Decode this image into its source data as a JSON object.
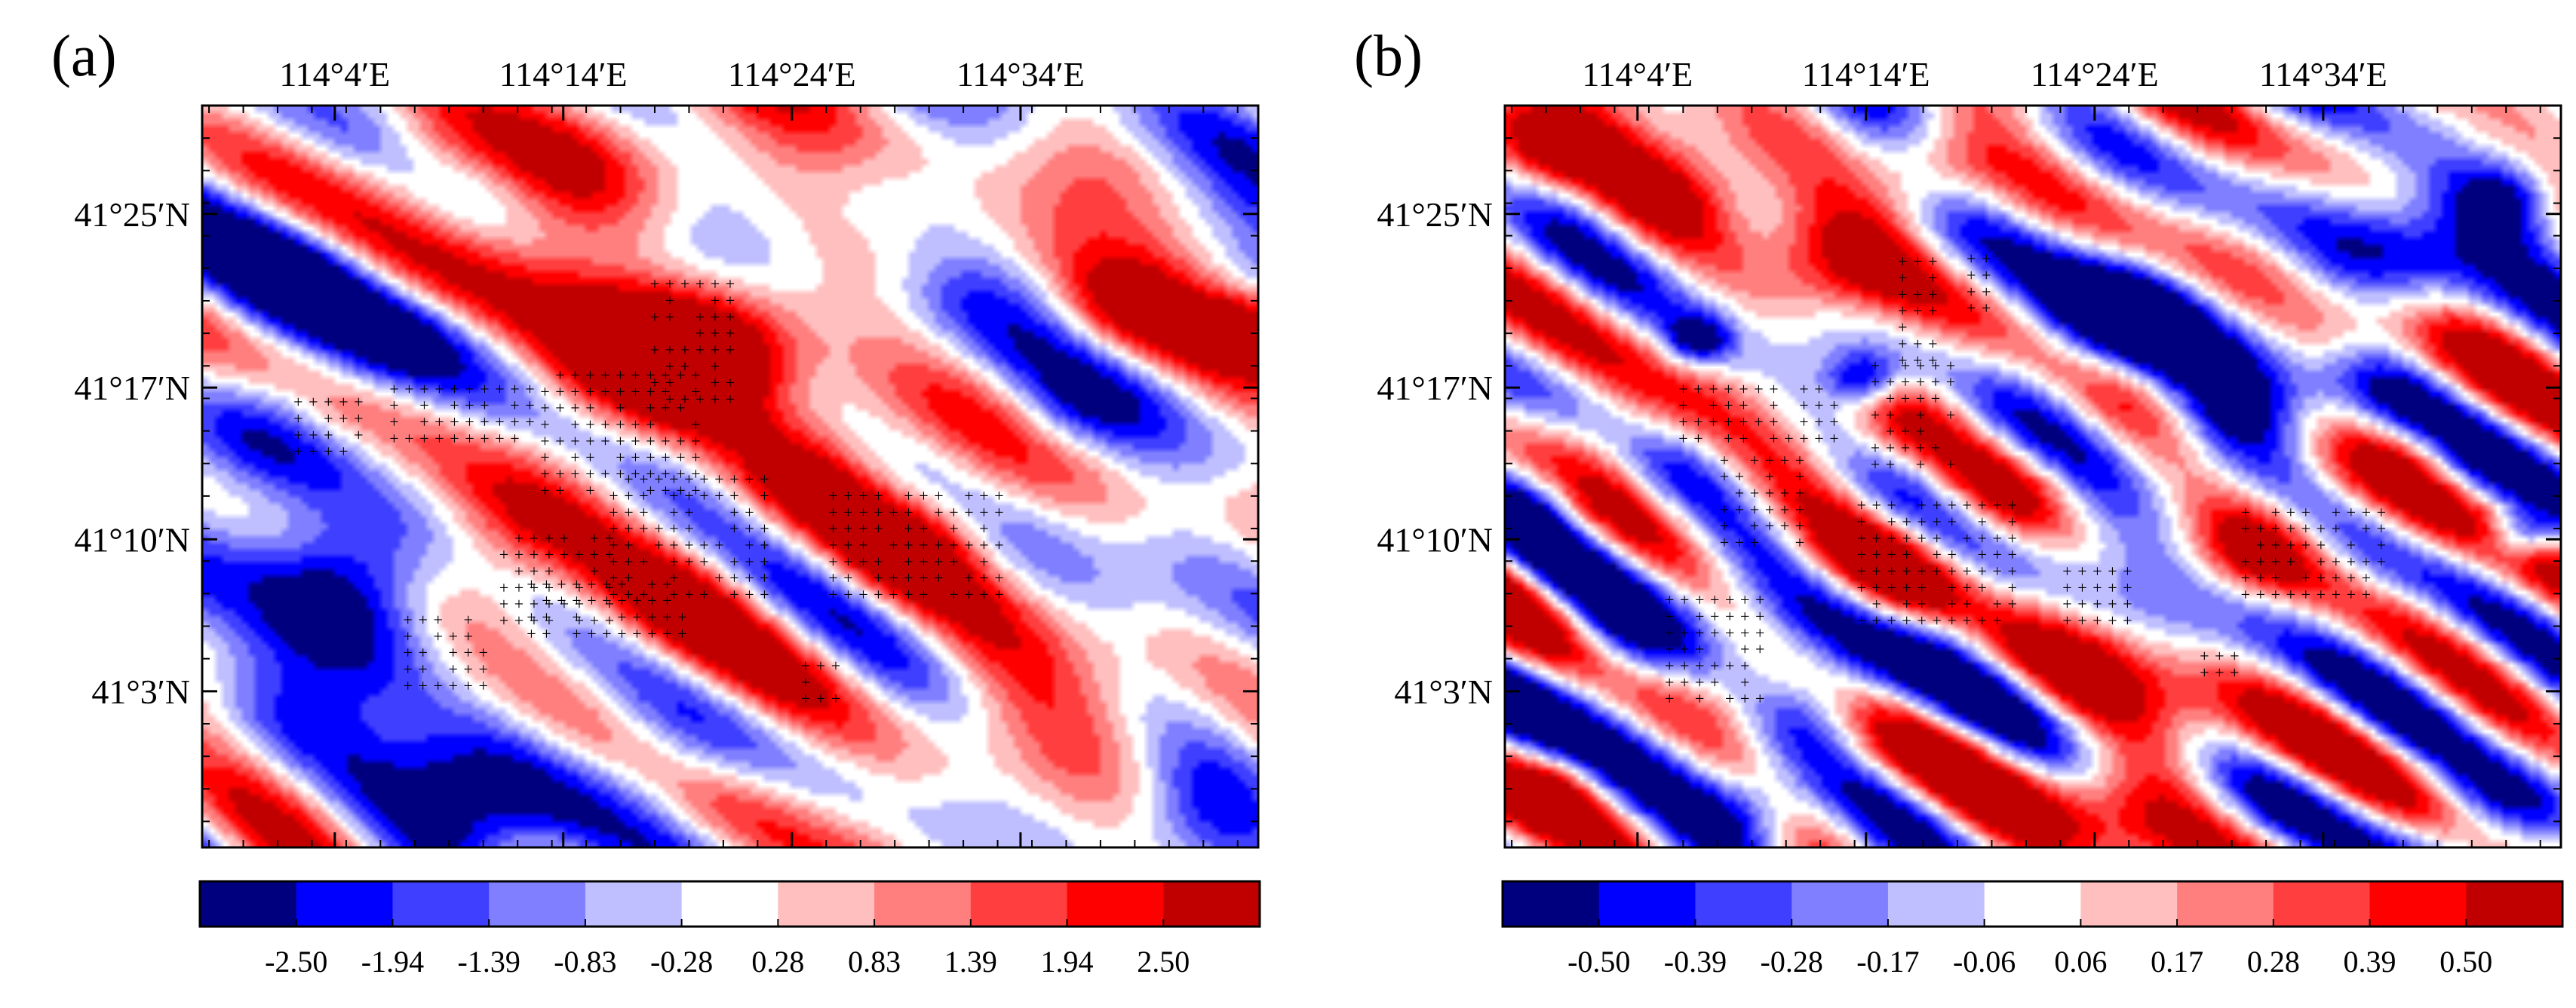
{
  "chart_data": [
    {
      "type": "heatmap",
      "panel_label": "(a)",
      "x_tick_labels": [
        "114°4′E",
        "114°14′E",
        "114°24′E",
        "114°34′E"
      ],
      "x_tick_values": [
        114.0667,
        114.2333,
        114.4,
        114.5667
      ],
      "xlim": [
        113.97,
        114.74
      ],
      "y_tick_labels": [
        "41°25′N",
        "41°17′N",
        "41°10′N",
        "41°3′N"
      ],
      "y_tick_values": [
        41.4167,
        41.2833,
        41.1667,
        41.05
      ],
      "ylim": [
        40.93,
        41.5
      ],
      "colorbar_labels": [
        "-2.50",
        "-1.94",
        "-1.39",
        "-0.83",
        "-0.28",
        "0.28",
        "0.83",
        "1.39",
        "1.94",
        "2.50"
      ],
      "colorbar_colors": [
        "#00007f",
        "#0000ff",
        "#3f3fff",
        "#7f7fff",
        "#bfbfff",
        "#ffffff",
        "#ffbfbf",
        "#ff7f7f",
        "#ff3f3f",
        "#ff0000",
        "#c00000"
      ],
      "vmin": -3.0,
      "vmax": 3.0,
      "significance_marker": "+",
      "blobs": [
        {
          "lon": 114.25,
          "lat": 41.45,
          "v": 2.6,
          "r": 0.09
        },
        {
          "lon": 114.13,
          "lat": 41.46,
          "v": 1.5,
          "r": 0.05
        },
        {
          "lon": 114.35,
          "lat": 41.32,
          "v": 3.4,
          "r": 0.07
        },
        {
          "lon": 114.27,
          "lat": 41.29,
          "v": 2.8,
          "r": 0.08
        },
        {
          "lon": 114.42,
          "lat": 41.22,
          "v": 2.2,
          "r": 0.06
        },
        {
          "lon": 114.49,
          "lat": 41.17,
          "v": 2.5,
          "r": 0.06
        },
        {
          "lon": 114.2,
          "lat": 41.17,
          "v": 1.8,
          "r": 0.07
        },
        {
          "lon": 114.31,
          "lat": 41.12,
          "v": 1.7,
          "r": 0.07
        },
        {
          "lon": 114.64,
          "lat": 41.34,
          "v": 1.6,
          "r": 0.05
        },
        {
          "lon": 114.73,
          "lat": 41.33,
          "v": 2.4,
          "r": 0.035
        },
        {
          "lon": 114.55,
          "lat": 41.02,
          "v": 1.1,
          "r": 0.1
        },
        {
          "lon": 114.38,
          "lat": 41.07,
          "v": 0.9,
          "r": 0.08
        },
        {
          "lon": 114.62,
          "lat": 41.45,
          "v": 0.6,
          "r": 0.06
        },
        {
          "lon": 114.05,
          "lat": 41.38,
          "v": -1.8,
          "r": 0.08
        },
        {
          "lon": 114.01,
          "lat": 41.24,
          "v": -2.2,
          "r": 0.08
        },
        {
          "lon": 114.08,
          "lat": 41.14,
          "v": -2.9,
          "r": 0.07
        },
        {
          "lon": 114.05,
          "lat": 41.05,
          "v": -1.8,
          "r": 0.07
        },
        {
          "lon": 114.17,
          "lat": 40.97,
          "v": -2.6,
          "r": 0.08
        },
        {
          "lon": 114.3,
          "lat": 40.99,
          "v": -1.3,
          "r": 0.06
        },
        {
          "lon": 114.7,
          "lat": 40.96,
          "v": -1.9,
          "r": 0.06
        },
        {
          "lon": 114.07,
          "lat": 41.26,
          "v": 0.4,
          "r": 0.025
        },
        {
          "lon": 114.45,
          "lat": 41.43,
          "v": -0.6,
          "r": 0.05
        },
        {
          "lon": 114.52,
          "lat": 41.35,
          "v": -0.5,
          "r": 0.04
        },
        {
          "lon": 114.6,
          "lat": 41.26,
          "v": -0.7,
          "r": 0.04
        },
        {
          "lon": 114.12,
          "lat": 41.32,
          "v": -0.8,
          "r": 0.04
        }
      ],
      "cross_regions": [
        {
          "lon0": 114.3,
          "lon1": 114.36,
          "lat0": 41.27,
          "lat1": 41.37
        },
        {
          "lon0": 114.22,
          "lon1": 114.33,
          "lat0": 41.2,
          "lat1": 41.29
        },
        {
          "lon0": 114.11,
          "lon1": 114.21,
          "lat0": 41.24,
          "lat1": 41.29
        },
        {
          "lon0": 114.04,
          "lon1": 114.09,
          "lat0": 41.23,
          "lat1": 41.28
        },
        {
          "lon0": 114.27,
          "lon1": 114.38,
          "lat0": 41.12,
          "lat1": 41.21
        },
        {
          "lon0": 114.19,
          "lon1": 114.27,
          "lat0": 41.1,
          "lat1": 41.17
        },
        {
          "lon0": 114.12,
          "lon1": 114.18,
          "lat0": 41.05,
          "lat1": 41.11
        },
        {
          "lon0": 114.43,
          "lon1": 114.56,
          "lat0": 41.12,
          "lat1": 41.2
        },
        {
          "lon0": 114.41,
          "lon1": 114.44,
          "lat0": 41.04,
          "lat1": 41.07
        },
        {
          "lon0": 114.21,
          "lon1": 114.33,
          "lat0": 41.09,
          "lat1": 41.13
        }
      ]
    },
    {
      "type": "heatmap",
      "panel_label": "(b)",
      "x_tick_labels": [
        "114°4′E",
        "114°14′E",
        "114°24′E",
        "114°34′E"
      ],
      "x_tick_values": [
        114.0667,
        114.2333,
        114.4,
        114.5667
      ],
      "xlim": [
        113.97,
        114.74
      ],
      "y_tick_labels": [
        "41°25′N",
        "41°17′N",
        "41°10′N",
        "41°3′N"
      ],
      "y_tick_values": [
        41.4167,
        41.2833,
        41.1667,
        41.05
      ],
      "ylim": [
        40.93,
        41.5
      ],
      "colorbar_labels": [
        "-0.50",
        "-0.39",
        "-0.28",
        "-0.17",
        "-0.06",
        "0.06",
        "0.17",
        "0.28",
        "0.39",
        "0.50"
      ],
      "colorbar_colors": [
        "#00007f",
        "#0000ff",
        "#3f3fff",
        "#7f7fff",
        "#bfbfff",
        "#ffffff",
        "#ffbfbf",
        "#ff7f7f",
        "#ff3f3f",
        "#ff0000",
        "#c00000"
      ],
      "vmin": -0.6,
      "vmax": 0.6,
      "significance_marker": "+",
      "blobs": [
        {
          "lon": 114.0,
          "lat": 41.47,
          "v": 0.65,
          "r": 0.05
        },
        {
          "lon": 114.1,
          "lat": 41.44,
          "v": 0.45,
          "r": 0.06
        },
        {
          "lon": 114.2,
          "lat": 41.37,
          "v": 0.45,
          "r": 0.06
        },
        {
          "lon": 114.28,
          "lat": 41.45,
          "v": 0.4,
          "r": 0.05
        },
        {
          "lon": 114.41,
          "lat": 41.33,
          "v": -0.75,
          "r": 0.065
        },
        {
          "lon": 114.5,
          "lat": 41.26,
          "v": -0.55,
          "r": 0.06
        },
        {
          "lon": 114.62,
          "lat": 41.38,
          "v": -0.45,
          "r": 0.07
        },
        {
          "lon": 114.7,
          "lat": 41.43,
          "v": -0.5,
          "r": 0.04
        },
        {
          "lon": 114.05,
          "lat": 41.08,
          "v": -0.55,
          "r": 0.06
        },
        {
          "lon": 114.19,
          "lat": 41.03,
          "v": -0.4,
          "r": 0.05
        },
        {
          "lon": 114.11,
          "lat": 41.32,
          "v": -0.55,
          "r": 0.025
        },
        {
          "lon": 114.23,
          "lat": 41.29,
          "v": -0.55,
          "r": 0.025
        },
        {
          "lon": 114.71,
          "lat": 41.17,
          "v": -0.55,
          "r": 0.025
        },
        {
          "lon": 114.7,
          "lat": 40.96,
          "v": -0.4,
          "r": 0.05
        },
        {
          "lon": 114.15,
          "lat": 40.96,
          "v": -0.35,
          "r": 0.04
        },
        {
          "lon": 114.42,
          "lat": 40.98,
          "v": 0.5,
          "r": 0.08
        },
        {
          "lon": 114.0,
          "lat": 40.97,
          "v": 0.45,
          "r": 0.04
        },
        {
          "lon": 114.26,
          "lat": 41.26,
          "v": 0.4,
          "r": 0.05
        },
        {
          "lon": 114.52,
          "lat": 41.16,
          "v": 0.45,
          "r": 0.05
        },
        {
          "lon": 114.05,
          "lat": 41.25,
          "v": 0.3,
          "r": 0.05
        },
        {
          "lon": 114.33,
          "lat": 41.2,
          "v": 0.3,
          "r": 0.05
        },
        {
          "lon": 114.25,
          "lat": 41.15,
          "v": 0.25,
          "r": 0.05
        },
        {
          "lon": 114.57,
          "lat": 41.32,
          "v": 0.2,
          "r": 0.04
        },
        {
          "lon": 114.64,
          "lat": 41.24,
          "v": 0.3,
          "r": 0.04
        },
        {
          "lon": 114.38,
          "lat": 41.05,
          "v": 0.25,
          "r": 0.05
        },
        {
          "lon": 113.99,
          "lat": 41.2,
          "v": -0.3,
          "r": 0.04
        },
        {
          "lon": 114.3,
          "lat": 41.1,
          "v": -0.25,
          "r": 0.04
        }
      ],
      "cross_regions": [
        {
          "lon0": 114.26,
          "lon1": 114.29,
          "lat0": 41.3,
          "lat1": 41.38
        },
        {
          "lon0": 114.31,
          "lon1": 114.33,
          "lat0": 41.34,
          "lat1": 41.38
        },
        {
          "lon0": 114.24,
          "lon1": 114.3,
          "lat0": 41.22,
          "lat1": 41.3
        },
        {
          "lon0": 114.1,
          "lon1": 114.21,
          "lat0": 41.24,
          "lat1": 41.29
        },
        {
          "lon0": 114.13,
          "lon1": 114.19,
          "lat0": 41.16,
          "lat1": 41.23
        },
        {
          "lon0": 114.23,
          "lon1": 114.34,
          "lat0": 41.1,
          "lat1": 41.2
        },
        {
          "lon0": 114.38,
          "lon1": 114.43,
          "lat0": 41.1,
          "lat1": 41.15
        },
        {
          "lon0": 114.51,
          "lon1": 114.61,
          "lat0": 41.12,
          "lat1": 41.19
        },
        {
          "lon0": 114.09,
          "lon1": 114.16,
          "lat0": 41.04,
          "lat1": 41.12
        },
        {
          "lon0": 114.48,
          "lon1": 114.51,
          "lat0": 41.06,
          "lat1": 41.08
        }
      ]
    }
  ]
}
